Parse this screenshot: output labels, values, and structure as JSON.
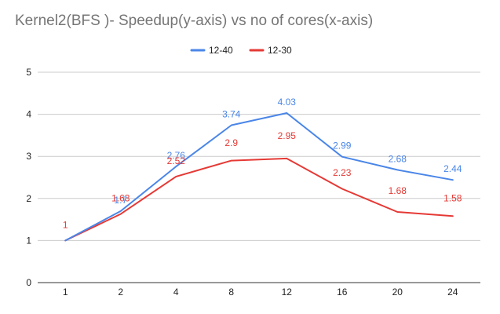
{
  "chart_data": {
    "type": "line",
    "title": "Kernel2(BFS )- Speedup(y-axis) vs no of cores(x-axis)",
    "xlabel": "",
    "ylabel": "",
    "categories": [
      "1",
      "2",
      "4",
      "8",
      "12",
      "16",
      "20",
      "24"
    ],
    "ylim": [
      0,
      5
    ],
    "yticks": [
      0,
      1,
      2,
      3,
      4,
      5
    ],
    "grid": true,
    "legend_position": "top",
    "series": [
      {
        "name": "12-40",
        "color": "#4a86e8",
        "values": [
          1,
          1.7,
          2.76,
          3.74,
          4.03,
          2.99,
          2.68,
          2.44
        ],
        "labels": [
          "",
          "1.7",
          "2.76",
          "3.74",
          "4.03",
          "2.99",
          "2.68",
          "2.44"
        ]
      },
      {
        "name": "12-30",
        "color": "#e53935",
        "values": [
          1,
          1.63,
          2.52,
          2.9,
          2.95,
          2.23,
          1.68,
          1.58
        ],
        "labels": [
          "1",
          "1.63",
          "2.52",
          "2.9",
          "2.95",
          "2.23",
          "1.68",
          "1.58"
        ]
      }
    ]
  }
}
